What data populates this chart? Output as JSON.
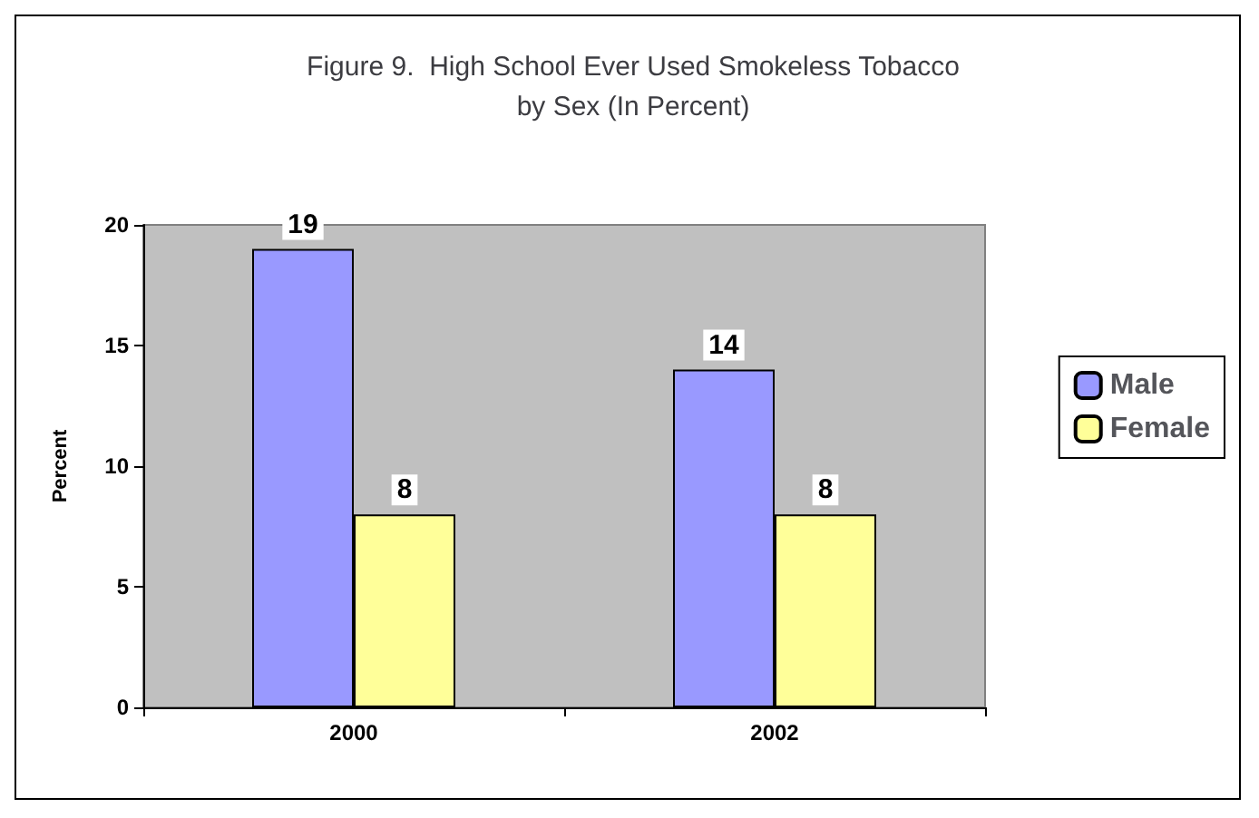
{
  "chart_data": {
    "type": "bar",
    "title": "Figure 9.  High School Ever Used Smokeless Tobacco\nby Sex (In Percent)",
    "ylabel": "Percent",
    "categories": [
      "2000",
      "2002"
    ],
    "series": [
      {
        "name": "Male",
        "color": "#9999ff",
        "values": [
          19,
          14
        ]
      },
      {
        "name": "Female",
        "color": "#ffff99",
        "values": [
          8,
          8
        ]
      }
    ],
    "ylim": [
      0,
      20
    ],
    "yticks": [
      0,
      5,
      10,
      15,
      20
    ],
    "data_labels": true,
    "legend": "right",
    "grid": false
  }
}
